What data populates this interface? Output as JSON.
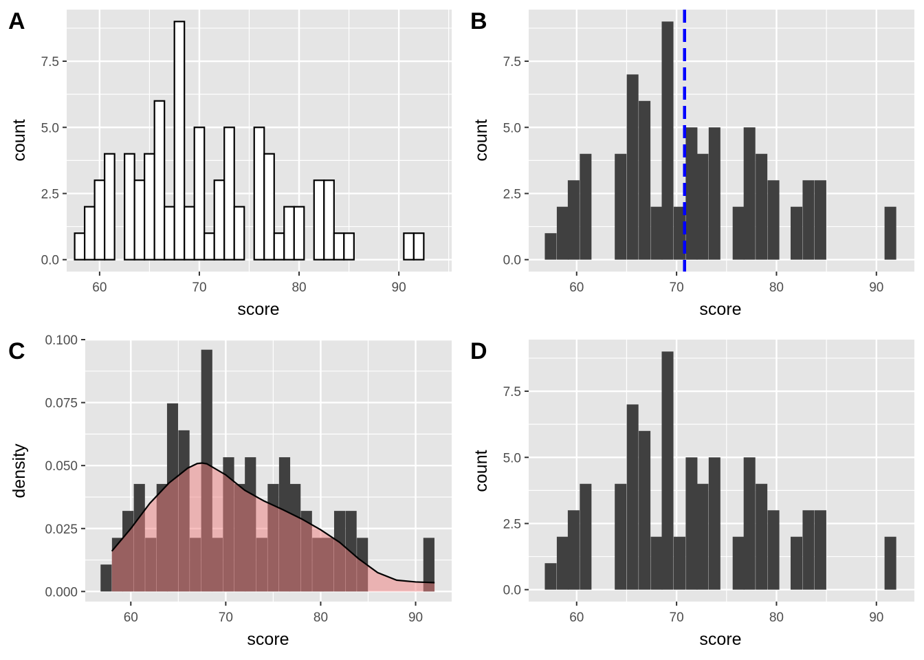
{
  "chart_data": [
    {
      "panel": "A",
      "type": "bar",
      "style": "outlined-white",
      "xlabel": "score",
      "ylabel": "count",
      "x_ticks": [
        60,
        70,
        80,
        90
      ],
      "y_ticks": [
        "0.0",
        "2.5",
        "5.0",
        "7.5"
      ],
      "xlim": [
        56.7,
        95.3
      ],
      "ylim": [
        -0.45,
        9.45
      ],
      "bin_width": 1,
      "bin_centers": [
        58,
        59,
        60,
        61,
        62,
        63,
        64,
        65,
        66,
        67,
        68,
        69,
        70,
        71,
        72,
        73,
        74,
        75,
        76,
        77,
        78,
        79,
        80,
        81,
        82,
        83,
        84,
        85,
        86,
        87,
        88,
        89,
        90,
        91,
        92
      ],
      "values": [
        1,
        2,
        3,
        4,
        0,
        4,
        3,
        4,
        6,
        2,
        9,
        2,
        5,
        1,
        3,
        5,
        2,
        0,
        5,
        4,
        1,
        2,
        2,
        0,
        3,
        3,
        1,
        1,
        0,
        0,
        0,
        0,
        0,
        1,
        1
      ],
      "colors": {
        "fill": "#ffffff",
        "outline": "#000000"
      }
    },
    {
      "panel": "B",
      "type": "bar",
      "xlabel": "score",
      "ylabel": "count",
      "x_ticks": [
        60,
        70,
        80,
        90
      ],
      "y_ticks": [
        "0.0",
        "2.5",
        "5.0",
        "7.5"
      ],
      "xlim": [
        55.2,
        93.8
      ],
      "ylim": [
        -0.45,
        9.45
      ],
      "bin_width": 1.172,
      "bin_centers": [
        57.4,
        58.6,
        59.7,
        60.9,
        64.4,
        65.6,
        66.8,
        68.0,
        69.1,
        70.3,
        71.5,
        72.6,
        73.8,
        76.2,
        77.3,
        78.5,
        79.7,
        82.0,
        83.2,
        84.4,
        91.4
      ],
      "values": [
        1,
        2,
        3,
        4,
        4,
        7,
        6,
        2,
        9,
        2,
        5,
        4,
        5,
        2,
        5,
        4,
        3,
        2,
        3,
        3,
        2
      ],
      "reference_line": {
        "x": 70.8,
        "style": "dashed"
      },
      "colors": {
        "fill": "#404040",
        "line": "#0000ff"
      }
    },
    {
      "panel": "C",
      "type": "bar",
      "overlay": "density-curve",
      "xlabel": "score",
      "ylabel": "density",
      "x_ticks": [
        60,
        70,
        80,
        90
      ],
      "y_ticks": [
        "0.000",
        "0.025",
        "0.050",
        "0.075",
        "0.100"
      ],
      "xlim": [
        55.2,
        93.8
      ],
      "ylim": [
        -0.004,
        0.1
      ],
      "bin_width": 1.172,
      "bin_centers": [
        57.4,
        58.6,
        59.7,
        60.9,
        62.1,
        63.3,
        64.4,
        65.6,
        66.8,
        68.0,
        69.1,
        70.3,
        71.5,
        72.6,
        73.8,
        75.0,
        76.2,
        77.3,
        78.5,
        79.7,
        80.8,
        82.0,
        83.2,
        84.4,
        91.4
      ],
      "values": [
        0.0107,
        0.0213,
        0.032,
        0.0427,
        0.0213,
        0.0427,
        0.0747,
        0.064,
        0.0213,
        0.096,
        0.0213,
        0.0533,
        0.0427,
        0.0533,
        0.0213,
        0.0427,
        0.0533,
        0.0427,
        0.032,
        0.0213,
        0.0213,
        0.032,
        0.032,
        0.0213,
        0.0213
      ],
      "density_x": [
        58,
        60,
        62,
        64,
        66,
        67,
        67.5,
        68,
        70,
        72,
        74,
        76,
        78,
        80,
        82,
        84,
        86,
        88,
        90,
        92
      ],
      "density_y": [
        0.016,
        0.025,
        0.035,
        0.043,
        0.049,
        0.0508,
        0.051,
        0.0507,
        0.0463,
        0.0402,
        0.036,
        0.0325,
        0.0288,
        0.0245,
        0.0195,
        0.013,
        0.0075,
        0.0045,
        0.0038,
        0.0035
      ],
      "colors": {
        "fill": "#404040",
        "density_fill": "#f08080",
        "density_line": "#000000"
      }
    },
    {
      "panel": "D",
      "type": "bar",
      "xlabel": "score",
      "ylabel": "count",
      "x_ticks": [
        60,
        70,
        80,
        90
      ],
      "y_ticks": [
        "0.0",
        "2.5",
        "5.0",
        "7.5"
      ],
      "xlim": [
        55.2,
        93.8
      ],
      "ylim": [
        -0.45,
        9.45
      ],
      "bin_width": 1.172,
      "bin_centers": [
        57.4,
        58.6,
        59.7,
        60.9,
        64.4,
        65.6,
        66.8,
        68.0,
        69.1,
        70.3,
        71.5,
        72.6,
        73.8,
        76.2,
        77.3,
        78.5,
        79.7,
        82.0,
        83.2,
        84.4,
        91.4
      ],
      "values": [
        1,
        2,
        3,
        4,
        4,
        7,
        6,
        2,
        9,
        2,
        5,
        4,
        5,
        2,
        5,
        4,
        3,
        2,
        3,
        3,
        2
      ],
      "colors": {
        "fill": "#404040"
      }
    }
  ],
  "panels": {
    "A": {
      "letter": "A",
      "xlabel": "score",
      "ylabel": "count"
    },
    "B": {
      "letter": "B",
      "xlabel": "score",
      "ylabel": "count"
    },
    "C": {
      "letter": "C",
      "xlabel": "score",
      "ylabel": "density"
    },
    "D": {
      "letter": "D",
      "xlabel": "score",
      "ylabel": "count"
    }
  },
  "theme": {
    "panel_bg": "#e5e5e5",
    "grid": "#ffffff",
    "tick": "#333333"
  }
}
